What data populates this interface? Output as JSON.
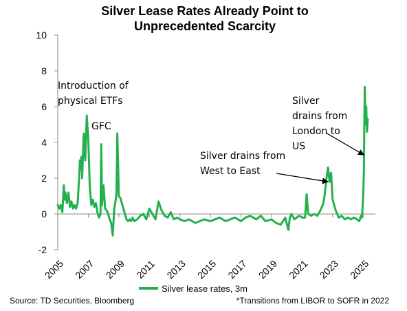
{
  "chart_data": {
    "type": "line",
    "title_lines": [
      "Silver Lease Rates Already Point to",
      "Unprecedented Scarcity"
    ],
    "xlabel": "",
    "ylabel": "",
    "ylim": [
      -2,
      10
    ],
    "xlim": [
      2005,
      2025.8
    ],
    "y_ticks": [
      -2,
      0,
      2,
      4,
      6,
      8,
      10
    ],
    "x_ticks": [
      2005,
      2007,
      2009,
      2011,
      2013,
      2015,
      2017,
      2019,
      2021,
      2023,
      2025
    ],
    "x_tick_labels": [
      "2005",
      "2007",
      "2009",
      "2011",
      "2013",
      "2015",
      "2017",
      "2019",
      "2021",
      "2023",
      "2025"
    ],
    "grid": false,
    "legend_position": "bottom",
    "series": [
      {
        "name": "Silver lease rates, 3m",
        "color": "#22b14c",
        "x": [
          2005.0,
          2005.1,
          2005.2,
          2005.3,
          2005.4,
          2005.45,
          2005.5,
          2005.6,
          2005.7,
          2005.8,
          2005.9,
          2006.0,
          2006.1,
          2006.2,
          2006.3,
          2006.4,
          2006.45,
          2006.5,
          2006.55,
          2006.6,
          2006.7,
          2006.8,
          2006.9,
          2007.0,
          2007.1,
          2007.2,
          2007.3,
          2007.4,
          2007.5,
          2007.6,
          2007.7,
          2007.8,
          2007.85,
          2007.9,
          2008.0,
          2008.1,
          2008.2,
          2008.3,
          2008.4,
          2008.5,
          2008.6,
          2008.7,
          2008.8,
          2008.85,
          2008.9,
          2008.95,
          2009.0,
          2009.1,
          2009.2,
          2009.3,
          2009.4,
          2009.5,
          2009.6,
          2009.7,
          2009.8,
          2009.9,
          2010.0,
          2010.2,
          2010.4,
          2010.6,
          2010.8,
          2011.0,
          2011.2,
          2011.4,
          2011.6,
          2011.8,
          2012.0,
          2012.2,
          2012.4,
          2012.6,
          2012.8,
          2013.0,
          2013.3,
          2013.6,
          2014.0,
          2014.3,
          2014.6,
          2015.0,
          2015.3,
          2015.6,
          2016.0,
          2016.3,
          2016.6,
          2017.0,
          2017.3,
          2017.6,
          2018.0,
          2018.3,
          2018.6,
          2019.0,
          2019.3,
          2019.6,
          2019.9,
          2020.1,
          2020.2,
          2020.3,
          2020.5,
          2020.8,
          2021.0,
          2021.2,
          2021.3,
          2021.4,
          2021.6,
          2021.8,
          2022.0,
          2022.2,
          2022.4,
          2022.5,
          2022.6,
          2022.7,
          2022.8,
          2022.9,
          2023.0,
          2023.2,
          2023.4,
          2023.6,
          2023.8,
          2024.0,
          2024.2,
          2024.4,
          2024.6,
          2024.75,
          2024.85,
          2024.92,
          2025.0,
          2025.05,
          2025.1,
          2025.15,
          2025.2,
          2025.25,
          2025.3
        ],
        "y": [
          0.5,
          0.3,
          0.5,
          0.1,
          1.6,
          0.8,
          1.2,
          0.6,
          1.2,
          0.4,
          0.7,
          0.3,
          0.5,
          0.3,
          0.6,
          2.0,
          3.0,
          2.5,
          3.2,
          2.0,
          4.5,
          3.0,
          5.5,
          4.2,
          1.5,
          0.5,
          0.8,
          0.4,
          0.6,
          0.1,
          -0.2,
          0.0,
          3.9,
          0.5,
          1.6,
          0.3,
          0.2,
          0.0,
          -0.3,
          -0.5,
          -1.2,
          0.3,
          0.8,
          1.2,
          4.5,
          3.0,
          1.0,
          0.9,
          0.6,
          0.3,
          0.0,
          -0.3,
          -0.4,
          -0.3,
          -0.4,
          -0.2,
          -0.4,
          -0.3,
          -0.1,
          0.0,
          -0.3,
          0.3,
          0.0,
          -0.3,
          0.7,
          0.2,
          -0.1,
          -0.2,
          0.1,
          -0.3,
          -0.2,
          -0.3,
          -0.4,
          -0.3,
          -0.5,
          -0.4,
          -0.3,
          -0.4,
          -0.3,
          -0.2,
          -0.4,
          -0.3,
          -0.2,
          -0.4,
          -0.2,
          -0.1,
          -0.3,
          -0.1,
          -0.4,
          -0.3,
          -0.5,
          -0.6,
          -0.2,
          -0.9,
          -0.2,
          0.0,
          -0.3,
          -0.1,
          -0.2,
          -0.2,
          1.1,
          0.0,
          -0.1,
          0.0,
          -0.1,
          0.2,
          0.6,
          1.2,
          2.0,
          2.6,
          1.8,
          2.3,
          0.8,
          0.2,
          -0.2,
          -0.1,
          -0.3,
          -0.2,
          -0.3,
          -0.2,
          -0.3,
          -0.4,
          -0.1,
          -0.2,
          0.9,
          2.4,
          7.1,
          5.0,
          6.0,
          4.6,
          5.3
        ]
      }
    ],
    "annotations": [
      {
        "lines": [
          "Introduction of",
          "physical ETFs"
        ],
        "target": null
      },
      {
        "lines": [
          "GFC"
        ],
        "target": null
      },
      {
        "lines": [
          "Silver drains from",
          "West to East"
        ],
        "target": [
          2022.7,
          1.8
        ]
      },
      {
        "lines": [
          "Silver",
          "drains from",
          "London to",
          "US"
        ],
        "target": [
          2025.05,
          3.3
        ]
      }
    ],
    "footnotes": {
      "source": "Source: TD Securities, Bloomberg",
      "note": "*Transitions from LIBOR to  SOFR in 2022"
    }
  }
}
